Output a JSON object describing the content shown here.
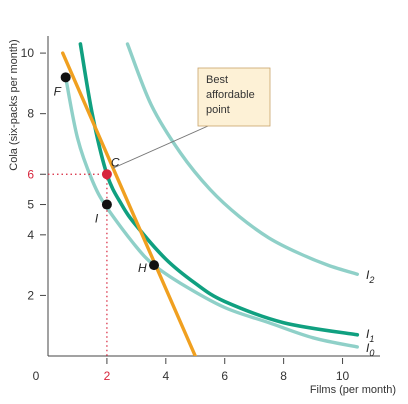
{
  "chart_data": {
    "type": "line",
    "xlabel": "Films (per month)",
    "ylabel": "Cola (six-packs per month)",
    "xlim": [
      0,
      11
    ],
    "ylim": [
      0,
      10.3
    ],
    "x_ticks": [
      {
        "value": 0,
        "label": "0"
      },
      {
        "value": 2,
        "label": "2"
      },
      {
        "value": 4,
        "label": "4"
      },
      {
        "value": 6,
        "label": "6"
      },
      {
        "value": 8,
        "label": "8"
      },
      {
        "value": 10,
        "label": "10"
      }
    ],
    "y_ticks": [
      {
        "value": 2,
        "label": "2"
      },
      {
        "value": 4,
        "label": "4"
      },
      {
        "value": 5,
        "label": "5"
      },
      {
        "value": 6,
        "label": "6"
      },
      {
        "value": 8,
        "label": "8"
      },
      {
        "value": 10,
        "label": "10"
      }
    ],
    "highlight_x_tick": 2,
    "highlight_y_tick": 6,
    "colors": {
      "budget_line": "#f0a020",
      "I0": "#8fd0c8",
      "I1": "#10a080",
      "I2": "#8fd0c8",
      "point": "#111111",
      "best_point": "#d7263d",
      "guide": "#d7263d",
      "axis": "#444444"
    },
    "series": [
      {
        "key": "budget",
        "x": [
          0.5,
          5
        ],
        "y": [
          10,
          0
        ]
      },
      {
        "key": "I0",
        "name": "I0",
        "x": [
          0.6,
          1,
          1.5,
          2,
          3,
          3.6,
          4.5,
          6,
          7.5,
          9,
          10.5
        ],
        "y": [
          9.2,
          7.2,
          5.8,
          4.9,
          3.6,
          3.0,
          2.4,
          1.6,
          1.1,
          0.6,
          0.3
        ]
      },
      {
        "key": "I1",
        "name": "I1",
        "x": [
          1.1,
          1.5,
          2,
          2.5,
          3,
          4,
          5,
          6,
          8,
          10.5
        ],
        "y": [
          10.3,
          8.0,
          6.0,
          5.0,
          4.3,
          3.2,
          2.4,
          1.8,
          1.1,
          0.7
        ]
      },
      {
        "key": "I2",
        "name": "I2",
        "x": [
          2.7,
          3.5,
          4.5,
          5.5,
          6.5,
          7.5,
          8.5,
          9.5,
          10.5
        ],
        "y": [
          10.3,
          8.3,
          6.7,
          5.5,
          4.6,
          3.9,
          3.4,
          3.0,
          2.7
        ]
      }
    ],
    "points": [
      {
        "label": "F",
        "x": 0.6,
        "y": 9.2
      },
      {
        "label": "C",
        "x": 2,
        "y": 6
      },
      {
        "label": "I",
        "x": 2,
        "y": 5
      },
      {
        "label": "H",
        "x": 3.6,
        "y": 3
      }
    ],
    "curve_labels": [
      {
        "series": "I2",
        "text": "I",
        "sub": "2"
      },
      {
        "series": "I1",
        "text": "I",
        "sub": "1"
      },
      {
        "series": "I0",
        "text": "I",
        "sub": "0"
      }
    ],
    "annotation": {
      "lines": [
        "Best",
        "affordable",
        "point"
      ],
      "target": "C"
    }
  }
}
